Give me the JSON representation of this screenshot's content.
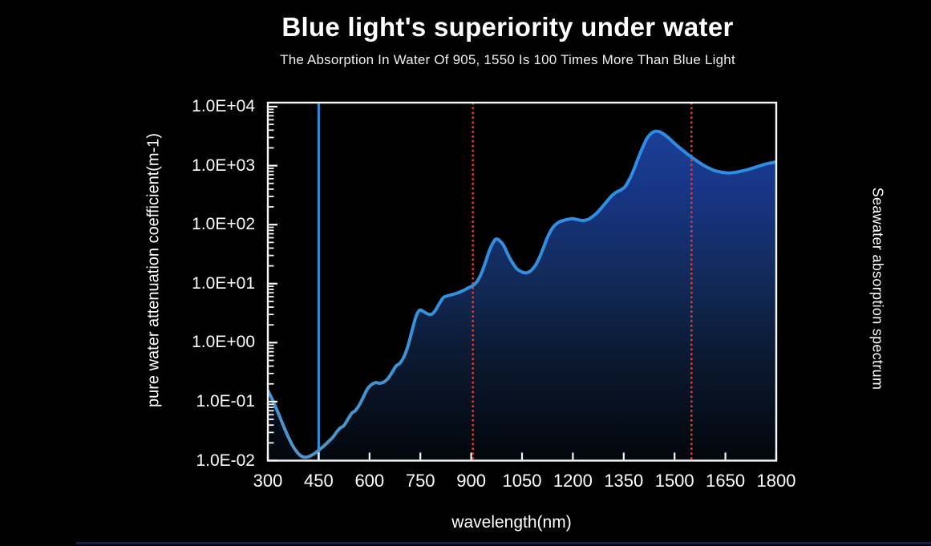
{
  "page": {
    "title": "Blue light's superiority under water",
    "subtitle": "The Absorption In Water Of 905, 1550 Is 100 Times More Than Blue Light"
  },
  "chart_data": {
    "type": "area",
    "title": "Blue light's superiority under water",
    "xlabel": "wavelength(nm)",
    "ylabel_left": "pure water attenuation coefficient(m-1)",
    "ylabel_right": "Seawater absorption spectrum",
    "y_scale": "log",
    "xlim": [
      300,
      1800
    ],
    "ylim": [
      "1.0E-02",
      "1.0E+04"
    ],
    "grid": false,
    "legend_position": "none",
    "x_ticks": [
      300,
      450,
      600,
      750,
      900,
      1050,
      1200,
      1350,
      1500,
      1650,
      1800
    ],
    "y_ticks": [
      {
        "label": "1.0E+04",
        "value": 10000
      },
      {
        "label": "1.0E+03",
        "value": 1000
      },
      {
        "label": "1.0E+02",
        "value": 100
      },
      {
        "label": "1.0E+01",
        "value": 10
      },
      {
        "label": "1.0E+00",
        "value": 1
      },
      {
        "label": "1.0E-01",
        "value": 0.1
      },
      {
        "label": "1.0E-02",
        "value": 0.01
      }
    ],
    "series": [
      {
        "name": "water attenuation coefficient",
        "x": [
          300,
          312,
          324,
          336,
          348,
          360,
          372,
          384,
          396,
          408,
          420,
          432,
          444,
          456,
          468,
          480,
          492,
          504,
          514,
          524,
          536,
          548,
          558,
          570,
          582,
          594,
          606,
          618,
          630,
          642,
          654,
          666,
          678,
          690,
          702,
          714,
          726,
          738,
          748,
          758,
          770,
          782,
          794,
          806,
          818,
          830,
          845,
          860,
          875,
          890,
          905,
          918,
          930,
          942,
          955,
          968,
          975,
          985,
          996,
          1008,
          1020,
          1034,
          1048,
          1062,
          1075,
          1088,
          1100,
          1112,
          1125,
          1140,
          1155,
          1170,
          1185,
          1200,
          1215,
          1230,
          1245,
          1258,
          1272,
          1286,
          1300,
          1314,
          1328,
          1342,
          1356,
          1370,
          1382,
          1394,
          1406,
          1418,
          1430,
          1442,
          1455,
          1468,
          1482,
          1496,
          1510,
          1525,
          1540,
          1555,
          1570,
          1585,
          1600,
          1615,
          1630,
          1645,
          1660,
          1675,
          1690,
          1705,
          1720,
          1735,
          1750,
          1765,
          1780,
          1800
        ],
        "y": [
          0.155,
          0.112,
          0.079,
          0.054,
          0.0365,
          0.0255,
          0.0185,
          0.0145,
          0.0122,
          0.0114,
          0.0117,
          0.0126,
          0.014,
          0.016,
          0.0183,
          0.0213,
          0.025,
          0.031,
          0.036,
          0.039,
          0.05,
          0.064,
          0.07,
          0.088,
          0.12,
          0.165,
          0.195,
          0.21,
          0.205,
          0.215,
          0.245,
          0.31,
          0.4,
          0.45,
          0.58,
          0.9,
          1.65,
          2.85,
          3.55,
          3.4,
          3.1,
          3.0,
          3.5,
          4.6,
          5.8,
          6.2,
          6.55,
          6.95,
          7.55,
          8.4,
          9.3,
          11,
          15,
          23,
          38,
          53,
          57,
          53,
          44,
          31.5,
          23.5,
          18,
          15.9,
          15.2,
          16.4,
          19.8,
          26.5,
          39,
          61,
          88,
          107,
          117,
          123,
          126,
          121,
          117.5,
          123,
          137,
          160,
          198,
          246,
          305,
          355,
          388,
          455,
          640,
          920,
          1400,
          2050,
          2850,
          3480,
          3820,
          3760,
          3420,
          2960,
          2500,
          2120,
          1800,
          1540,
          1330,
          1160,
          1020,
          915,
          840,
          790,
          763,
          753,
          764,
          790,
          826,
          872,
          926,
          988,
          1048,
          1098,
          1155
        ]
      }
    ],
    "markers": [
      {
        "name": "blue-light-450nm",
        "wavelength": 450,
        "style": "solid",
        "color": "#2e8fe2"
      },
      {
        "name": "nir-905nm",
        "wavelength": 905,
        "style": "dotted",
        "color": "#e8342a"
      },
      {
        "name": "nir-1550nm",
        "wavelength": 1550,
        "style": "dotted",
        "color": "#e8342a"
      }
    ],
    "colors": {
      "background": "#000000",
      "text": "#ffffff",
      "axis": "#f8f8f8",
      "curve_top": "#2a8bea",
      "curve_bottom": "#4f96c8",
      "fill_top": "#1c439f",
      "fill_mid": "#122a58",
      "fill_bottom": "#03070d",
      "marker_blue": "#2e8fe2",
      "marker_red": "#e8342a",
      "bottom_bar": "#15203f"
    }
  }
}
